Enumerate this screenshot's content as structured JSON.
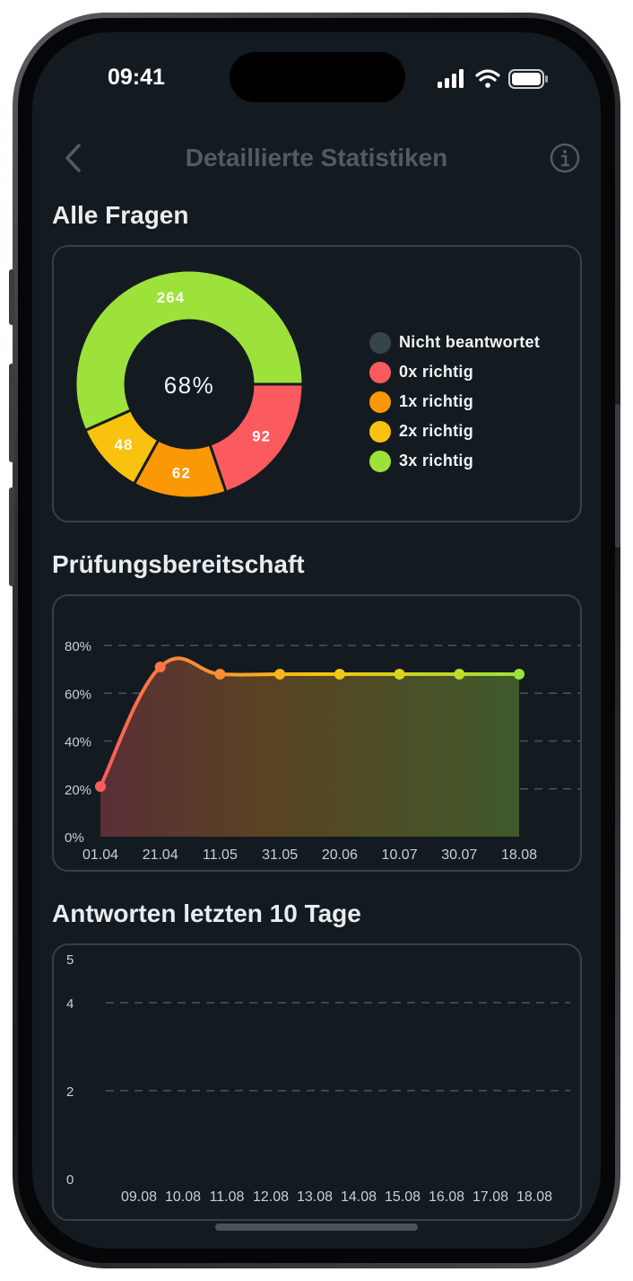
{
  "status_bar": {
    "time": "09:41"
  },
  "nav": {
    "title": "Detaillierte Statistiken"
  },
  "sections": {
    "all_questions": "Alle Fragen",
    "readiness": "Prüfungsbereitschaft",
    "answers": "Antworten letzten 10 Tage"
  },
  "colors": {
    "background": "#141b20",
    "not_answered": "#36444c",
    "zero_correct": "#fb5b5e",
    "one_correct": "#fb9805",
    "two_correct": "#f9c20e",
    "three_correct": "#9de23a"
  },
  "chart_data": [
    {
      "type": "pie",
      "center_label": "68%",
      "slices": [
        {
          "name": "Nicht beantwortet",
          "value": 0,
          "color": "#36444c"
        },
        {
          "name": "0x richtig",
          "value": 92,
          "color": "#fb5b5e"
        },
        {
          "name": "1x richtig",
          "value": 62,
          "color": "#fb9805"
        },
        {
          "name": "2x richtig",
          "value": 48,
          "color": "#f9c20e"
        },
        {
          "name": "3x richtig",
          "value": 264,
          "color": "#9de23a"
        }
      ],
      "legend_position": "right"
    },
    {
      "type": "area",
      "x": [
        "01.04",
        "21.04",
        "11.05",
        "31.05",
        "20.06",
        "10.07",
        "30.07",
        "18.08"
      ],
      "y": [
        21,
        71,
        68,
        68,
        68,
        68,
        68,
        68
      ],
      "ylim": [
        0,
        80
      ],
      "yticks": [
        "0%",
        "20%",
        "40%",
        "60%",
        "80%"
      ],
      "ytick_values": [
        0,
        20,
        40,
        60,
        80
      ],
      "grid": true
    },
    {
      "type": "bar",
      "categories": [
        "09.08",
        "10.08",
        "11.08",
        "12.08",
        "13.08",
        "14.08",
        "15.08",
        "16.08",
        "17.08",
        "18.08"
      ],
      "values": [
        0,
        0,
        0,
        0,
        0,
        0,
        0,
        0,
        0,
        0
      ],
      "ylim": [
        0,
        5
      ],
      "yticks": [
        "0",
        "2",
        "4",
        "5"
      ],
      "ytick_values": [
        0,
        2,
        4,
        5
      ],
      "grid": true
    }
  ]
}
